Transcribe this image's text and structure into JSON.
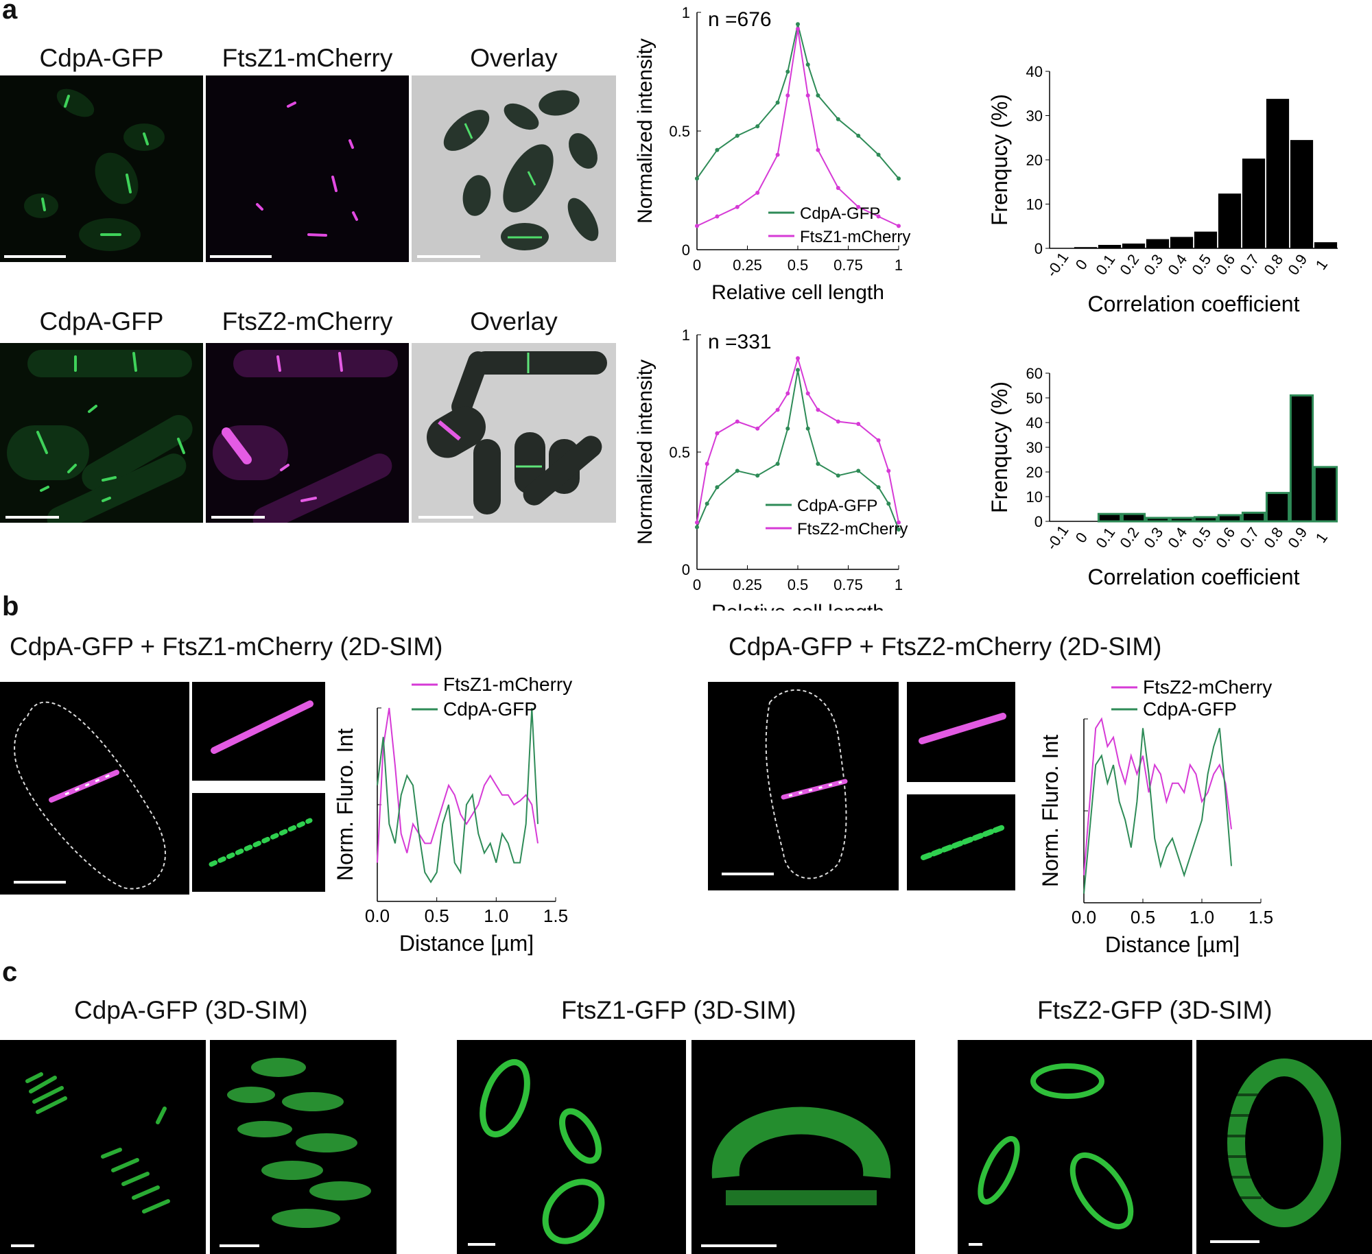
{
  "panel_labels": {
    "a": "a",
    "b": "b",
    "c": "c"
  },
  "panel_a": {
    "row1_titles": [
      "CdpA-GFP",
      "FtsZ1-mCherry",
      "Overlay"
    ],
    "row2_titles": [
      "CdpA-GFP",
      "FtsZ2-mCherry",
      "Overlay"
    ]
  },
  "panel_b": {
    "left_title": "CdpA-GFP + FtsZ1-mCherry (2D-SIM)",
    "right_title": "CdpA-GFP + FtsZ2-mCherry (2D-SIM)"
  },
  "panel_c": {
    "titles": [
      "CdpA-GFP (3D-SIM)",
      "FtsZ1-GFP (3D-SIM)",
      "FtsZ2-GFP (3D-SIM)"
    ]
  },
  "colors": {
    "gfp": "#2e8b57",
    "gfp_dark": "#1f7a2e",
    "mcherry": "#d63ad6",
    "bar_fill": "#000000",
    "bar_edge_2": "#2e8b57"
  },
  "chart_data": [
    {
      "id": "profile1",
      "type": "line",
      "annotation": "n =676",
      "xlabel": "Relative cell length",
      "ylabel": "Normalized intensity",
      "xlim": [
        0,
        1
      ],
      "ylim": [
        0,
        1
      ],
      "xticks": [
        "0",
        "0.25",
        "0.5",
        "0.75",
        "1"
      ],
      "yticks": [
        "0",
        "0.5",
        "1"
      ],
      "x": [
        0,
        0.1,
        0.2,
        0.3,
        0.4,
        0.45,
        0.5,
        0.55,
        0.6,
        0.7,
        0.8,
        0.9,
        1.0
      ],
      "series": [
        {
          "name": "CdpA-GFP",
          "values": [
            0.3,
            0.42,
            0.48,
            0.52,
            0.62,
            0.75,
            0.95,
            0.78,
            0.65,
            0.55,
            0.48,
            0.4,
            0.3
          ]
        },
        {
          "name": "FtsZ1-mCherry",
          "values": [
            0.1,
            0.14,
            0.18,
            0.24,
            0.4,
            0.65,
            0.93,
            0.65,
            0.42,
            0.26,
            0.18,
            0.14,
            0.1
          ]
        }
      ]
    },
    {
      "id": "hist1",
      "type": "bar",
      "xlabel": "Correlation coefficient",
      "ylabel": "Frenqucy (%)",
      "ylim": [
        0,
        40
      ],
      "yticks": [
        "0",
        "10",
        "20",
        "30",
        "40"
      ],
      "categories": [
        "-0.1",
        "0",
        "0.1",
        "0.2",
        "0.3",
        "0.4",
        "0.5",
        "0.6",
        "0.7",
        "0.8",
        "0.9",
        "1"
      ],
      "values": [
        0,
        0.2,
        0.7,
        1.0,
        2.0,
        2.5,
        3.7,
        12.3,
        20.2,
        33.7,
        24.4,
        1.3
      ]
    },
    {
      "id": "profile2",
      "type": "line",
      "annotation": "n =331",
      "xlabel": "Relative cell length",
      "ylabel": "Normalized intensity",
      "xlim": [
        0,
        1
      ],
      "ylim": [
        0,
        1
      ],
      "xticks": [
        "0",
        "0.25",
        "0.5",
        "0.75",
        "1"
      ],
      "yticks": [
        "0",
        "0.5",
        "1"
      ],
      "x": [
        0,
        0.05,
        0.1,
        0.2,
        0.3,
        0.4,
        0.45,
        0.5,
        0.55,
        0.6,
        0.7,
        0.8,
        0.9,
        0.95,
        1.0
      ],
      "series": [
        {
          "name": "CdpA-GFP",
          "values": [
            0.18,
            0.28,
            0.35,
            0.42,
            0.4,
            0.45,
            0.6,
            0.85,
            0.6,
            0.45,
            0.4,
            0.42,
            0.35,
            0.28,
            0.17
          ]
        },
        {
          "name": "FtsZ2-mCherry",
          "values": [
            0.2,
            0.45,
            0.58,
            0.63,
            0.6,
            0.68,
            0.75,
            0.9,
            0.75,
            0.68,
            0.63,
            0.62,
            0.55,
            0.42,
            0.2
          ]
        }
      ]
    },
    {
      "id": "hist2",
      "type": "bar",
      "xlabel": "Correlation coefficient",
      "ylabel": "Frenqucy (%)",
      "ylim": [
        0,
        60
      ],
      "yticks": [
        "0",
        "10",
        "20",
        "30",
        "40",
        "50",
        "60"
      ],
      "categories": [
        "-0.1",
        "0",
        "0.1",
        "0.2",
        "0.3",
        "0.4",
        "0.5",
        "0.6",
        "0.7",
        "0.8",
        "0.9",
        "1"
      ],
      "values": [
        0,
        0,
        3.0,
        3.0,
        1.4,
        1.4,
        1.7,
        2.5,
        3.5,
        11.5,
        51.0,
        22.0
      ]
    },
    {
      "id": "sim1",
      "type": "line",
      "xlabel": "Distance [µm]",
      "ylabel": "Norm. Fluro. Int",
      "xlim": [
        0,
        1.5
      ],
      "ylim": [
        0,
        1
      ],
      "xticks": [
        "0.0",
        "0.5",
        "1.0",
        "1.5"
      ],
      "x": [
        0,
        0.05,
        0.1,
        0.15,
        0.2,
        0.25,
        0.3,
        0.35,
        0.4,
        0.45,
        0.5,
        0.55,
        0.6,
        0.65,
        0.7,
        0.75,
        0.8,
        0.85,
        0.9,
        0.95,
        1.0,
        1.05,
        1.1,
        1.15,
        1.2,
        1.25,
        1.3,
        1.35
      ],
      "series": [
        {
          "name": "FtsZ1-mCherry",
          "values": [
            0.2,
            0.8,
            1.0,
            0.7,
            0.35,
            0.25,
            0.4,
            0.35,
            0.3,
            0.3,
            0.4,
            0.5,
            0.6,
            0.55,
            0.45,
            0.4,
            0.45,
            0.5,
            0.6,
            0.65,
            0.6,
            0.55,
            0.55,
            0.5,
            0.52,
            0.55,
            0.5,
            0.3
          ]
        },
        {
          "name": "CdpA-GFP",
          "values": [
            0.6,
            0.85,
            0.4,
            0.3,
            0.55,
            0.65,
            0.6,
            0.35,
            0.15,
            0.1,
            0.15,
            0.4,
            0.5,
            0.2,
            0.15,
            0.5,
            0.55,
            0.35,
            0.25,
            0.3,
            0.2,
            0.35,
            0.3,
            0.2,
            0.2,
            0.4,
            1.0,
            0.4
          ]
        }
      ]
    },
    {
      "id": "sim2",
      "type": "line",
      "xlabel": "Distance [µm]",
      "ylabel": "Norm. Fluro. Int",
      "xlim": [
        0,
        1.5
      ],
      "ylim": [
        0,
        1
      ],
      "xticks": [
        "0.0",
        "0.5",
        "1.0",
        "1.5"
      ],
      "x": [
        0,
        0.05,
        0.1,
        0.15,
        0.2,
        0.25,
        0.3,
        0.35,
        0.4,
        0.45,
        0.5,
        0.55,
        0.6,
        0.65,
        0.7,
        0.75,
        0.8,
        0.85,
        0.9,
        0.95,
        1.0,
        1.05,
        1.1,
        1.15,
        1.2,
        1.25
      ],
      "series": [
        {
          "name": "FtsZ2-mCherry",
          "values": [
            0.15,
            0.55,
            0.95,
            1.0,
            0.85,
            0.9,
            0.75,
            0.65,
            0.8,
            0.7,
            0.8,
            0.6,
            0.75,
            0.7,
            0.55,
            0.65,
            0.65,
            0.6,
            0.75,
            0.7,
            0.55,
            0.6,
            0.7,
            0.75,
            0.65,
            0.4
          ]
        },
        {
          "name": "CdpA-GFP",
          "values": [
            0.05,
            0.4,
            0.75,
            0.8,
            0.65,
            0.75,
            0.55,
            0.45,
            0.3,
            0.55,
            0.95,
            0.7,
            0.35,
            0.2,
            0.3,
            0.35,
            0.25,
            0.15,
            0.25,
            0.35,
            0.45,
            0.7,
            0.85,
            0.95,
            0.6,
            0.2
          ]
        }
      ]
    }
  ]
}
